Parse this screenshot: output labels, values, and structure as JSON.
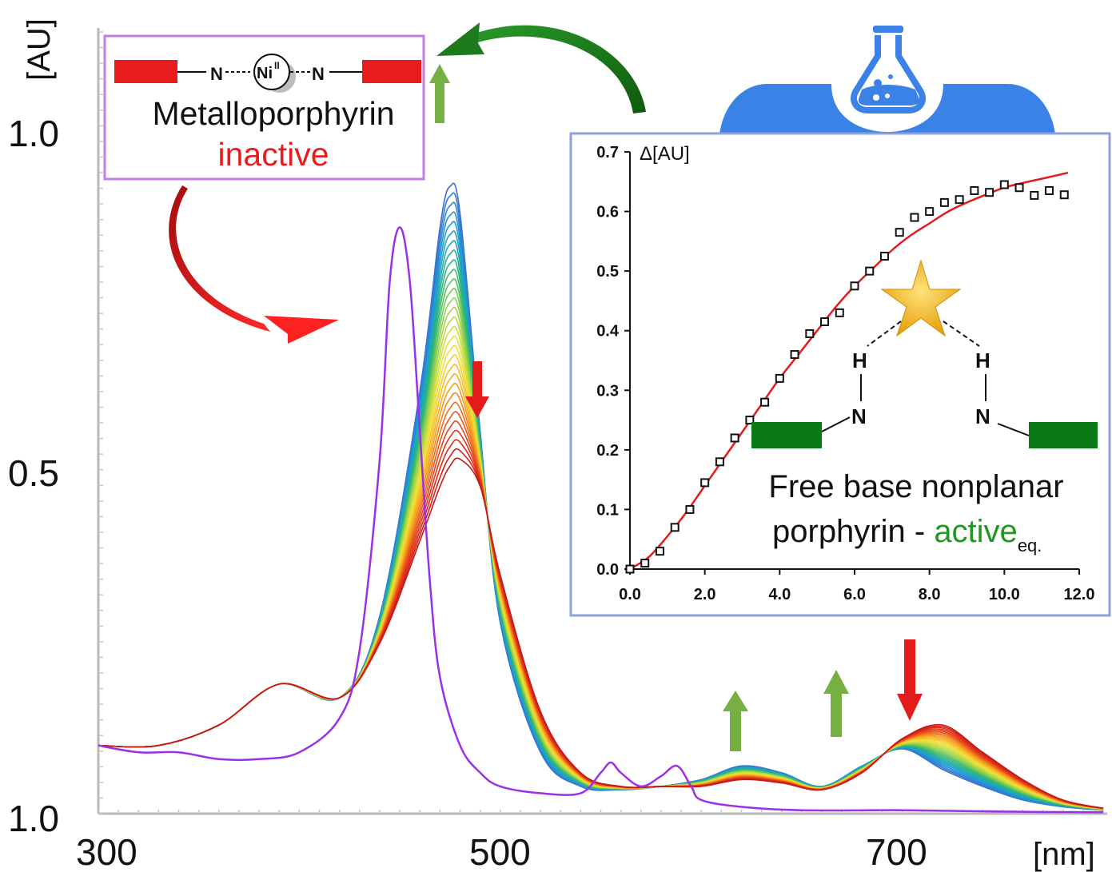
{
  "chart_data": [
    {
      "type": "line",
      "title": "",
      "y_unit": "[AU]",
      "x_unit": "[nm]",
      "x_tick_labels": [
        "300",
        "500",
        "700"
      ],
      "y_tick_labels": [
        "1.0",
        "0.5",
        "1.0"
      ],
      "xlim": [
        300,
        800
      ],
      "ylim": [
        0,
        1.0
      ],
      "colors": {
        "metalloporphyrin": "#9b30e8",
        "series_gradient": [
          "#3b6fd0",
          "#1a9fd6",
          "#2bb673",
          "#9bd34a",
          "#f2e33a",
          "#f7a21b",
          "#e8431c",
          "#c81818"
        ],
        "arrow_up": "#76b043",
        "arrow_down": "#e31b1b",
        "curve_arrow_red": "#e31b1b",
        "curve_arrow_green": "#1d7a1d"
      },
      "metalloporphyrin_spectrum": {
        "x": [
          300,
          320,
          340,
          360,
          380,
          400,
          420,
          430,
          440,
          445,
          450,
          455,
          460,
          465,
          470,
          480,
          490,
          500,
          520,
          540,
          550,
          555,
          560,
          570,
          580,
          588,
          595,
          600,
          620,
          650,
          700,
          750,
          800
        ],
        "y": [
          0.1,
          0.09,
          0.09,
          0.08,
          0.08,
          0.09,
          0.14,
          0.24,
          0.52,
          0.78,
          0.86,
          0.78,
          0.56,
          0.34,
          0.2,
          0.1,
          0.06,
          0.04,
          0.03,
          0.03,
          0.06,
          0.075,
          0.06,
          0.04,
          0.055,
          0.07,
          0.04,
          0.02,
          0.01,
          0.005,
          0.005,
          0.003,
          0.002
        ]
      },
      "titration_series": {
        "description_count": 30,
        "start": {
          "x": [
            300,
            330,
            360,
            390,
            420,
            440,
            460,
            470,
            475,
            480,
            490,
            500,
            520,
            540,
            560,
            580,
            600,
            620,
            640,
            660,
            680,
            700,
            720,
            740,
            760,
            780,
            800
          ],
          "y": [
            0.1,
            0.1,
            0.13,
            0.19,
            0.17,
            0.29,
            0.62,
            0.86,
            0.92,
            0.88,
            0.56,
            0.28,
            0.09,
            0.04,
            0.035,
            0.04,
            0.05,
            0.07,
            0.06,
            0.04,
            0.07,
            0.095,
            0.065,
            0.04,
            0.02,
            0.01,
            0.005
          ]
        },
        "end": {
          "x": [
            300,
            330,
            360,
            390,
            420,
            440,
            460,
            470,
            475,
            480,
            490,
            500,
            520,
            540,
            560,
            580,
            600,
            620,
            640,
            660,
            680,
            700,
            720,
            740,
            760,
            780,
            800
          ],
          "y": [
            0.1,
            0.1,
            0.13,
            0.19,
            0.17,
            0.25,
            0.4,
            0.48,
            0.51,
            0.52,
            0.48,
            0.35,
            0.15,
            0.06,
            0.04,
            0.04,
            0.04,
            0.05,
            0.045,
            0.035,
            0.06,
            0.11,
            0.13,
            0.09,
            0.05,
            0.02,
            0.008
          ]
        }
      },
      "annotations": {
        "metalloporphyrin_label": "Metalloporphyrin",
        "inactive_label": "inactive",
        "n_left": "N",
        "n_right": "N",
        "ni_label": "Ni",
        "ni_superscript": "II"
      }
    },
    {
      "type": "scatter",
      "ylabel": "Δ[AU]",
      "xlim": [
        0,
        12
      ],
      "ylim": [
        0,
        0.7
      ],
      "x_ticks": [
        "0.0",
        "2.0",
        "4.0",
        "6.0",
        "8.0",
        "10.0",
        "12.0"
      ],
      "y_ticks": [
        "0.0",
        "0.1",
        "0.2",
        "0.3",
        "0.4",
        "0.5",
        "0.6",
        "0.7"
      ],
      "points": {
        "x": [
          0.0,
          0.4,
          0.8,
          1.2,
          1.6,
          2.0,
          2.4,
          2.8,
          3.2,
          3.6,
          4.0,
          4.4,
          4.8,
          5.2,
          5.6,
          6.0,
          6.4,
          6.8,
          7.2,
          7.6,
          8.0,
          8.4,
          8.8,
          9.2,
          9.6,
          10.0,
          10.4,
          10.8,
          11.2,
          11.6
        ],
        "y": [
          0.0,
          0.01,
          0.03,
          0.07,
          0.1,
          0.145,
          0.18,
          0.22,
          0.25,
          0.28,
          0.32,
          0.36,
          0.395,
          0.415,
          0.43,
          0.475,
          0.5,
          0.525,
          0.565,
          0.59,
          0.6,
          0.615,
          0.62,
          0.635,
          0.632,
          0.645,
          0.64,
          0.627,
          0.635,
          0.628
        ]
      },
      "fit": {
        "x": [
          0,
          0.5,
          1,
          1.5,
          2,
          2.5,
          3,
          3.5,
          4,
          4.5,
          5,
          5.5,
          6,
          6.5,
          7,
          7.5,
          8,
          8.5,
          9,
          9.5,
          10,
          10.5,
          11,
          11.5,
          11.7
        ],
        "y": [
          0,
          0.02,
          0.055,
          0.095,
          0.14,
          0.185,
          0.23,
          0.275,
          0.32,
          0.36,
          0.4,
          0.44,
          0.475,
          0.505,
          0.535,
          0.56,
          0.58,
          0.6,
          0.615,
          0.628,
          0.64,
          0.648,
          0.655,
          0.662,
          0.665
        ]
      },
      "point_color": "#111111",
      "fit_color": "#e31b1b",
      "frame_color": "#8ea0d8",
      "annotations": {
        "h_left": "H",
        "h_right": "H",
        "n_left": "N",
        "n_right": "N",
        "caption_line1": "Free base nonplanar",
        "caption_line2_prefix": "porphyrin - ",
        "caption_active": "active",
        "caption_subscript": "eq."
      },
      "bar_color": "#0a7a16",
      "star_color": "#f2b01e"
    }
  ],
  "flask_color": "#3b82e6"
}
